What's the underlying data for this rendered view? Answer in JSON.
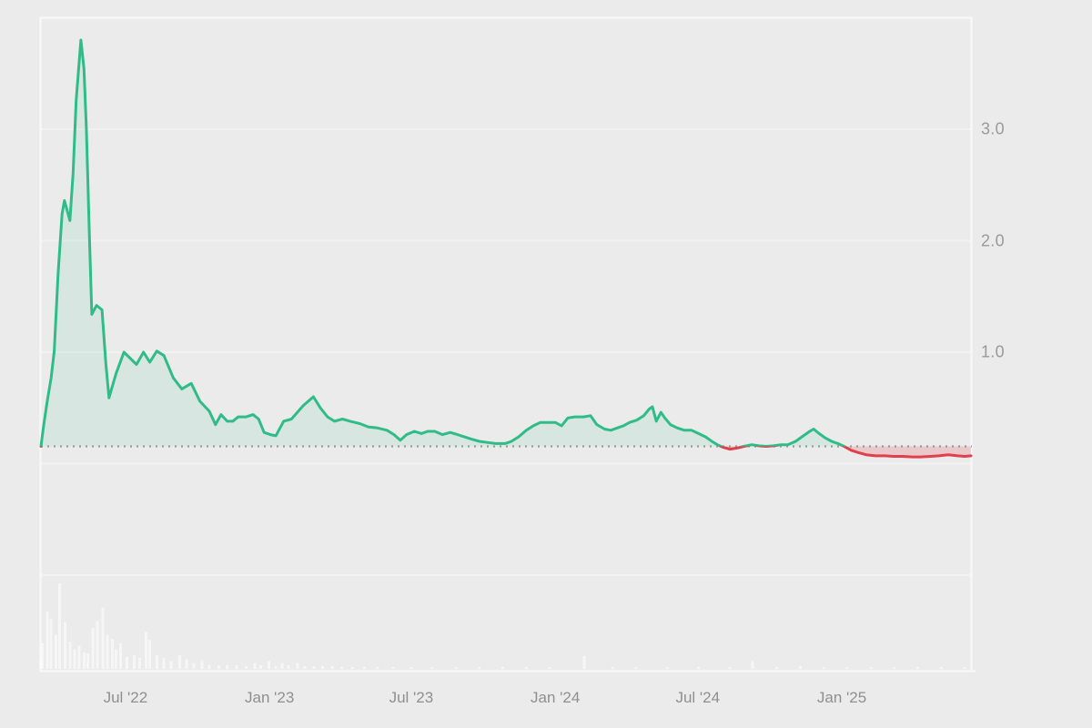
{
  "chart_data": {
    "type": "area",
    "subtype": "baseline-area-with-volume",
    "time_domain": {
      "start_date": "2022-03-15",
      "end_date": "2025-06-15",
      "total_days": 1188
    },
    "x_axis": {
      "ticks": [
        {
          "label": "Jul '22",
          "day": 108
        },
        {
          "label": "Jan '23",
          "day": 292
        },
        {
          "label": "Jul '23",
          "day": 473
        },
        {
          "label": "Jan '24",
          "day": 657
        },
        {
          "label": "Jul '24",
          "day": 839
        },
        {
          "label": "Jan '25",
          "day": 1023
        }
      ]
    },
    "y_axis": {
      "ticks": [
        {
          "label": "3.0",
          "value": 3.0
        },
        {
          "label": "2.0",
          "value": 2.0
        },
        {
          "label": "1.0",
          "value": 1.0
        }
      ],
      "gridline_values": [
        3.0,
        2.0,
        1.0,
        0.0,
        -1.0
      ],
      "plot_value_range": [
        -1.86,
        4.0
      ],
      "grid": "on",
      "labels_position": "right"
    },
    "baseline": {
      "value": 0.155,
      "style": "dotted",
      "meaning": "reference level: line/fill green above, red below"
    },
    "series": [
      {
        "name": "price",
        "points_format": "[days_since_start_date, value]",
        "points": [
          [
            0,
            0.155
          ],
          [
            3,
            0.32
          ],
          [
            8,
            0.56
          ],
          [
            13,
            0.77
          ],
          [
            17,
            1.01
          ],
          [
            22,
            1.71
          ],
          [
            27,
            2.24
          ],
          [
            30,
            2.36
          ],
          [
            34,
            2.26
          ],
          [
            37,
            2.18
          ],
          [
            41,
            2.6
          ],
          [
            45,
            3.26
          ],
          [
            51,
            3.8
          ],
          [
            55,
            3.54
          ],
          [
            58,
            3.01
          ],
          [
            62,
            2.03
          ],
          [
            65,
            1.34
          ],
          [
            71,
            1.42
          ],
          [
            78,
            1.38
          ],
          [
            83,
            0.89
          ],
          [
            87,
            0.59
          ],
          [
            96,
            0.81
          ],
          [
            106,
            1.0
          ],
          [
            122,
            0.89
          ],
          [
            131,
            1.0
          ],
          [
            139,
            0.91
          ],
          [
            148,
            1.01
          ],
          [
            157,
            0.97
          ],
          [
            169,
            0.77
          ],
          [
            180,
            0.67
          ],
          [
            192,
            0.72
          ],
          [
            203,
            0.56
          ],
          [
            215,
            0.47
          ],
          [
            223,
            0.35
          ],
          [
            230,
            0.44
          ],
          [
            238,
            0.38
          ],
          [
            245,
            0.38
          ],
          [
            252,
            0.42
          ],
          [
            262,
            0.42
          ],
          [
            271,
            0.44
          ],
          [
            278,
            0.4
          ],
          [
            285,
            0.28
          ],
          [
            293,
            0.26
          ],
          [
            300,
            0.25
          ],
          [
            310,
            0.38
          ],
          [
            320,
            0.4
          ],
          [
            335,
            0.52
          ],
          [
            348,
            0.6
          ],
          [
            357,
            0.5
          ],
          [
            366,
            0.42
          ],
          [
            375,
            0.38
          ],
          [
            385,
            0.4
          ],
          [
            395,
            0.38
          ],
          [
            407,
            0.36
          ],
          [
            418,
            0.33
          ],
          [
            430,
            0.32
          ],
          [
            442,
            0.3
          ],
          [
            451,
            0.26
          ],
          [
            459,
            0.21
          ],
          [
            467,
            0.26
          ],
          [
            477,
            0.29
          ],
          [
            486,
            0.27
          ],
          [
            494,
            0.29
          ],
          [
            503,
            0.29
          ],
          [
            513,
            0.26
          ],
          [
            523,
            0.28
          ],
          [
            532,
            0.26
          ],
          [
            541,
            0.24
          ],
          [
            550,
            0.22
          ],
          [
            560,
            0.2
          ],
          [
            570,
            0.19
          ],
          [
            581,
            0.18
          ],
          [
            593,
            0.18
          ],
          [
            601,
            0.2
          ],
          [
            610,
            0.24
          ],
          [
            620,
            0.3
          ],
          [
            629,
            0.34
          ],
          [
            638,
            0.37
          ],
          [
            647,
            0.37
          ],
          [
            657,
            0.37
          ],
          [
            665,
            0.34
          ],
          [
            673,
            0.41
          ],
          [
            682,
            0.42
          ],
          [
            693,
            0.42
          ],
          [
            702,
            0.43
          ],
          [
            710,
            0.35
          ],
          [
            720,
            0.31
          ],
          [
            728,
            0.3
          ],
          [
            736,
            0.32
          ],
          [
            744,
            0.34
          ],
          [
            752,
            0.37
          ],
          [
            761,
            0.39
          ],
          [
            770,
            0.43
          ],
          [
            777,
            0.49
          ],
          [
            781,
            0.51
          ],
          [
            786,
            0.38
          ],
          [
            792,
            0.46
          ],
          [
            797,
            0.41
          ],
          [
            804,
            0.35
          ],
          [
            813,
            0.32
          ],
          [
            822,
            0.3
          ],
          [
            831,
            0.3
          ],
          [
            840,
            0.27
          ],
          [
            849,
            0.24
          ],
          [
            857,
            0.2
          ],
          [
            864,
            0.17
          ],
          [
            872,
            0.145
          ],
          [
            880,
            0.13
          ],
          [
            889,
            0.14
          ],
          [
            898,
            0.155
          ],
          [
            908,
            0.17
          ],
          [
            917,
            0.16
          ],
          [
            926,
            0.155
          ],
          [
            936,
            0.16
          ],
          [
            945,
            0.17
          ],
          [
            954,
            0.17
          ],
          [
            964,
            0.2
          ],
          [
            973,
            0.245
          ],
          [
            981,
            0.285
          ],
          [
            987,
            0.31
          ],
          [
            994,
            0.27
          ],
          [
            1002,
            0.23
          ],
          [
            1010,
            0.2
          ],
          [
            1018,
            0.18
          ],
          [
            1026,
            0.155
          ],
          [
            1035,
            0.12
          ],
          [
            1044,
            0.1
          ],
          [
            1054,
            0.08
          ],
          [
            1066,
            0.07
          ],
          [
            1078,
            0.07
          ],
          [
            1089,
            0.065
          ],
          [
            1101,
            0.065
          ],
          [
            1113,
            0.06
          ],
          [
            1124,
            0.06
          ],
          [
            1136,
            0.065
          ],
          [
            1147,
            0.07
          ],
          [
            1159,
            0.08
          ],
          [
            1171,
            0.07
          ],
          [
            1180,
            0.065
          ],
          [
            1188,
            0.07
          ]
        ]
      }
    ],
    "volume_bars": {
      "note": "heights relative 0-1, no numeric scale shown in image",
      "points_format": "[days_since_start_date, relative_height]",
      "points": [
        [
          0,
          0.09
        ],
        [
          2,
          0.3
        ],
        [
          8,
          0.67
        ],
        [
          13,
          0.59
        ],
        [
          19,
          0.4
        ],
        [
          24,
          1.0
        ],
        [
          31,
          0.55
        ],
        [
          37,
          0.32
        ],
        [
          43,
          0.23
        ],
        [
          49,
          0.27
        ],
        [
          55,
          0.19
        ],
        [
          60,
          0.18
        ],
        [
          66,
          0.48
        ],
        [
          72,
          0.56
        ],
        [
          79,
          0.72
        ],
        [
          85,
          0.4
        ],
        [
          91,
          0.35
        ],
        [
          96,
          0.23
        ],
        [
          102,
          0.3
        ],
        [
          110,
          0.14
        ],
        [
          119,
          0.16
        ],
        [
          126,
          0.13
        ],
        [
          134,
          0.43
        ],
        [
          139,
          0.34
        ],
        [
          148,
          0.16
        ],
        [
          157,
          0.13
        ],
        [
          166,
          0.09
        ],
        [
          177,
          0.16
        ],
        [
          186,
          0.11
        ],
        [
          195,
          0.07
        ],
        [
          206,
          0.1
        ],
        [
          215,
          0.05
        ],
        [
          227,
          0.04
        ],
        [
          238,
          0.05
        ],
        [
          250,
          0.04
        ],
        [
          262,
          0.03
        ],
        [
          273,
          0.07
        ],
        [
          281,
          0.04
        ],
        [
          291,
          0.09
        ],
        [
          300,
          0.03
        ],
        [
          308,
          0.07
        ],
        [
          316,
          0.04
        ],
        [
          328,
          0.07
        ],
        [
          337,
          0.03
        ],
        [
          349,
          0.03
        ],
        [
          360,
          0.03
        ],
        [
          372,
          0.03
        ],
        [
          384,
          0.02
        ],
        [
          398,
          0.02
        ],
        [
          413,
          0.02
        ],
        [
          430,
          0.02
        ],
        [
          450,
          0.02
        ],
        [
          473,
          0.02
        ],
        [
          500,
          0.02
        ],
        [
          530,
          0.02
        ],
        [
          560,
          0.02
        ],
        [
          590,
          0.02
        ],
        [
          620,
          0.02
        ],
        [
          650,
          0.02
        ],
        [
          694,
          0.15
        ],
        [
          730,
          0.02
        ],
        [
          760,
          0.02
        ],
        [
          800,
          0.02
        ],
        [
          840,
          0.02
        ],
        [
          880,
          0.02
        ],
        [
          909,
          0.09
        ],
        [
          940,
          0.02
        ],
        [
          970,
          0.03
        ],
        [
          1000,
          0.02
        ],
        [
          1030,
          0.02
        ],
        [
          1060,
          0.02
        ],
        [
          1090,
          0.02
        ],
        [
          1120,
          0.02
        ],
        [
          1150,
          0.02
        ],
        [
          1180,
          0.02
        ]
      ]
    },
    "legend": "none",
    "title": ""
  },
  "colors": {
    "background": "#ebebeb",
    "line_up": "#2fbc88",
    "line_down": "#e0404b",
    "fill_up": "rgba(47,188,136,0.10)",
    "fill_down": "rgba(224,64,75,0.20)",
    "baseline_dotted": "#999999",
    "gridline": "#f2f2f2",
    "plot_border": "#f7f7f7",
    "axis_text": "#909090",
    "volume_bar": "rgba(255,255,255,0.55)"
  }
}
